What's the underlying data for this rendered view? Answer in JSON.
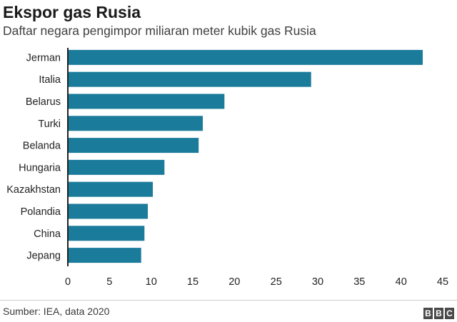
{
  "title": "Ekspor gas Rusia",
  "subtitle": "Daftar negara pengimpor miliaran meter kubik gas Rusia",
  "source": "Sumber: IEA, data 2020",
  "logo": [
    "B",
    "B",
    "C"
  ],
  "colors": {
    "bar": "#1b7b9b",
    "axis": "#222222",
    "text": "#222222"
  },
  "chart_data": {
    "type": "bar",
    "orientation": "horizontal",
    "categories": [
      "Jerman",
      "Italia",
      "Belarus",
      "Turki",
      "Belanda",
      "Hungaria",
      "Kazakhstan",
      "Polandia",
      "China",
      "Jepang"
    ],
    "values": [
      42.6,
      29.2,
      18.8,
      16.2,
      15.7,
      11.6,
      10.2,
      9.6,
      9.2,
      8.8
    ],
    "xlim": [
      0,
      45
    ],
    "xticks": [
      0,
      5,
      10,
      15,
      20,
      25,
      30,
      35,
      40,
      45
    ],
    "grid": false,
    "legend": "none"
  }
}
